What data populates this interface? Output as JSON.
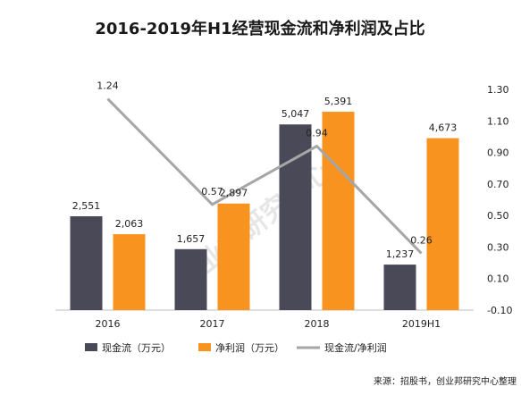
{
  "title": "2016-2019年H1经营现金流和净利润及占比",
  "source": "来源：招股书，创业邦研究中心整理",
  "watermark": "创业邦研究中心",
  "colors": {
    "cash": "#4a4958",
    "profit": "#f7931e",
    "ratio": "#a6a6a6",
    "axis": "#bfbfbf"
  },
  "chart_data": {
    "type": "bar",
    "categories": [
      "2016",
      "2017",
      "2018",
      "2019H1"
    ],
    "series": [
      {
        "name": "现金流（万元）",
        "kind": "bar",
        "values": [
          2551,
          1657,
          5047,
          1237
        ],
        "labels": [
          "2,551",
          "1,657",
          "5,047",
          "1,237"
        ]
      },
      {
        "name": "净利润（万元）",
        "kind": "bar",
        "values": [
          2063,
          2897,
          5391,
          4673
        ],
        "labels": [
          "2,063",
          "2,897",
          "5,391",
          "4,673"
        ]
      },
      {
        "name": "现金流/净利润",
        "kind": "line",
        "axis": "right",
        "values": [
          1.24,
          0.57,
          0.94,
          0.26
        ],
        "labels": [
          "1.24",
          "0.57",
          "0.94",
          "0.26"
        ]
      }
    ],
    "left_axis": {
      "min": 0,
      "max": 6000,
      "visible": false
    },
    "right_axis": {
      "min": -0.1,
      "max": 1.3,
      "ticks": [
        "-0.10",
        "0.10",
        "0.30",
        "0.50",
        "0.70",
        "0.90",
        "1.10",
        "1.30"
      ]
    },
    "grid": false,
    "legend_position": "bottom"
  }
}
